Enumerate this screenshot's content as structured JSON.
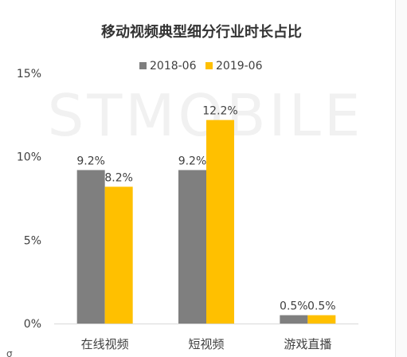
{
  "chart_data": {
    "type": "bar",
    "title": "移动视频典型细分行业时长占比",
    "watermark": "STMOBILE",
    "categories": [
      "在线视频",
      "短视频",
      "游戏直播"
    ],
    "series": [
      {
        "name": "2018-06",
        "color": "#7f7f7f",
        "values": [
          9.2,
          9.2,
          0.5
        ],
        "labels": [
          "9.2%",
          "9.2%",
          "0.5%"
        ]
      },
      {
        "name": "2019-06",
        "color": "#ffc000",
        "values": [
          8.2,
          12.2,
          0.5
        ],
        "labels": [
          "8.2%",
          "12.2%",
          "0.5%"
        ]
      }
    ],
    "yticks": [
      "0%",
      "5%",
      "10%",
      "15%"
    ],
    "ylim": [
      0,
      15
    ],
    "legend_position": "top",
    "grid": false
  }
}
